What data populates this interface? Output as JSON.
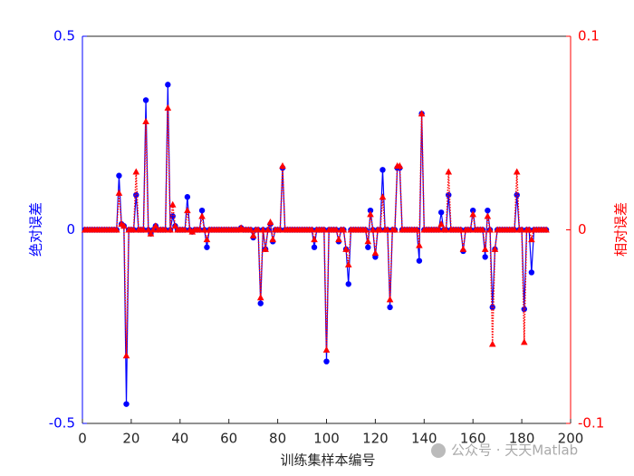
{
  "chart_data": {
    "type": "line",
    "xlabel": "训练集样本编号",
    "ylabel": "绝对误差",
    "y2label": "相对误差",
    "watermark": "公众号 · 天天Matlab",
    "xlim": [
      0,
      200
    ],
    "xticks": [
      0,
      20,
      40,
      60,
      80,
      100,
      120,
      140,
      160,
      180,
      200
    ],
    "ylim": [
      -0.5,
      0.5
    ],
    "yticks": [
      -0.5,
      0,
      0.5
    ],
    "y2lim": [
      -0.1,
      0.1
    ],
    "y2ticks": [
      -0.1,
      0,
      0.1
    ],
    "x": [
      1,
      2,
      3,
      4,
      5,
      6,
      7,
      8,
      9,
      10,
      11,
      12,
      13,
      14,
      15,
      16,
      17,
      18,
      19,
      20,
      21,
      22,
      23,
      24,
      25,
      26,
      27,
      28,
      29,
      30,
      31,
      32,
      33,
      34,
      35,
      36,
      37,
      38,
      39,
      40,
      41,
      42,
      43,
      44,
      45,
      46,
      47,
      48,
      49,
      50,
      51,
      52,
      53,
      54,
      55,
      56,
      57,
      58,
      59,
      60,
      61,
      62,
      63,
      64,
      65,
      66,
      67,
      68,
      69,
      70,
      71,
      72,
      73,
      74,
      75,
      76,
      77,
      78,
      79,
      80,
      81,
      82,
      83,
      84,
      85,
      86,
      87,
      88,
      89,
      90,
      91,
      92,
      93,
      94,
      95,
      96,
      97,
      98,
      99,
      100,
      101,
      102,
      103,
      104,
      105,
      106,
      107,
      108,
      109,
      110,
      111,
      112,
      113,
      114,
      115,
      116,
      117,
      118,
      119,
      120,
      121,
      122,
      123,
      124,
      125,
      126,
      127,
      128,
      129,
      130,
      131,
      132,
      133,
      134,
      135,
      136,
      137,
      138,
      139,
      140,
      141,
      142,
      143,
      144,
      145,
      146,
      147,
      148,
      149,
      150,
      151,
      152,
      153,
      154,
      155,
      156,
      157,
      158,
      159,
      160,
      161,
      162,
      163,
      164,
      165,
      166,
      167,
      168,
      169,
      170,
      171,
      172,
      173,
      174,
      175,
      176,
      177,
      178,
      179,
      180,
      181,
      182,
      183,
      184,
      185,
      186,
      187,
      188,
      189,
      190
    ],
    "series": [
      {
        "name": "绝对误差",
        "color": "#0000ff",
        "axis": "y",
        "values": [
          0,
          0,
          0,
          0,
          0,
          0,
          0,
          0,
          0,
          0,
          0,
          0,
          0,
          0,
          0.14,
          0.015,
          0.01,
          -0.45,
          0,
          0,
          0,
          0.09,
          0,
          0,
          0,
          0.335,
          0,
          -0.01,
          0,
          0.01,
          0,
          0,
          0,
          0,
          0.375,
          0,
          0.035,
          0.01,
          0,
          0,
          0,
          0,
          0.085,
          0,
          -0.005,
          0,
          0,
          0,
          0.05,
          0,
          -0.045,
          0,
          0,
          0,
          0,
          0,
          0,
          0,
          0,
          0,
          0,
          0,
          0,
          0,
          0.005,
          0,
          0,
          0,
          0,
          -0.02,
          0,
          0,
          -0.19,
          0,
          -0.05,
          0,
          0.015,
          -0.03,
          0,
          0,
          0,
          0.16,
          0,
          0,
          0,
          0,
          0,
          0,
          0,
          0,
          0,
          0,
          0,
          0,
          -0.045,
          0,
          0,
          0,
          0,
          -0.34,
          0,
          0,
          0,
          0,
          -0.03,
          0,
          0,
          -0.05,
          -0.14,
          0,
          0,
          0,
          0,
          0,
          0,
          0,
          -0.045,
          0.05,
          0,
          -0.07,
          0,
          0,
          0.155,
          0,
          0,
          -0.2,
          0,
          0,
          0.16,
          0.16,
          0,
          0,
          0,
          0,
          0,
          0,
          0,
          -0.08,
          0.3,
          0,
          0,
          0,
          0,
          0,
          0,
          0,
          0.045,
          0,
          0,
          0.09,
          0,
          0,
          0,
          0,
          0,
          -0.055,
          0,
          0,
          0,
          0.05,
          0,
          0,
          0,
          0,
          -0.07,
          0.05,
          0,
          -0.2,
          -0.05,
          0,
          0,
          0,
          0,
          0,
          0,
          0,
          0,
          0.09,
          0,
          0,
          -0.205,
          0,
          0,
          -0.11,
          0,
          0,
          0,
          0,
          0,
          0
        ]
      },
      {
        "name": "相对误差",
        "color": "#ff0000",
        "axis": "y2",
        "values": [
          0,
          0,
          0,
          0,
          0,
          0,
          0,
          0,
          0,
          0,
          0,
          0,
          0,
          0,
          0.019,
          0.003,
          0.002,
          -0.065,
          0,
          0,
          0,
          0.03,
          0,
          0,
          0,
          0.056,
          0,
          -0.002,
          0,
          0.002,
          0,
          0,
          0,
          0,
          0.063,
          0,
          0.013,
          0.002,
          0,
          0,
          0,
          0,
          0.01,
          0,
          -0.001,
          0,
          0,
          0,
          0.007,
          0,
          -0.005,
          0,
          0,
          0,
          0,
          0,
          0,
          0,
          0,
          0,
          0,
          0,
          0,
          0,
          0.001,
          0,
          0,
          0,
          0,
          -0.003,
          0,
          0,
          -0.035,
          0,
          -0.01,
          0,
          0.004,
          -0.005,
          0,
          0,
          0,
          0.033,
          0,
          0,
          0,
          0,
          0,
          0,
          0,
          0,
          0,
          0,
          0,
          0,
          -0.005,
          0,
          0,
          0,
          0,
          -0.062,
          0,
          0,
          0,
          0,
          -0.005,
          0,
          0,
          -0.01,
          -0.018,
          0,
          0,
          0,
          0,
          0,
          0,
          0,
          -0.006,
          0.008,
          0,
          -0.012,
          0,
          0,
          0.017,
          0,
          0,
          -0.036,
          0,
          0,
          0.033,
          0.033,
          0,
          0,
          0,
          0,
          0,
          0,
          0,
          -0.008,
          0.06,
          0,
          0,
          0,
          0,
          0,
          0,
          0,
          0.003,
          0,
          0,
          0.03,
          0,
          0,
          0,
          0,
          0,
          -0.01,
          0,
          0,
          0,
          0.008,
          0,
          0,
          0,
          0,
          -0.01,
          0.007,
          0,
          -0.059,
          -0.01,
          0,
          0,
          0,
          0,
          0,
          0,
          0,
          0,
          0.03,
          0,
          0,
          -0.058,
          0,
          0,
          -0.005,
          0,
          0,
          0,
          0,
          0,
          0
        ]
      }
    ]
  }
}
